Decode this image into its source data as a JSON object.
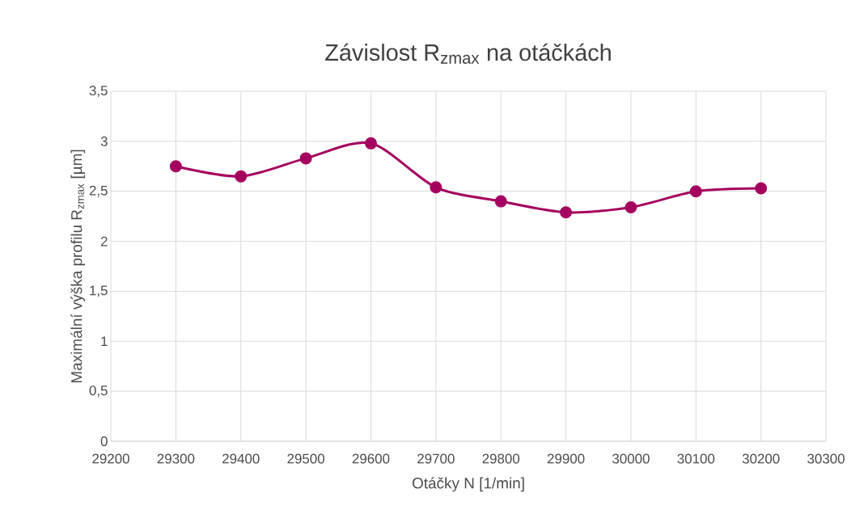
{
  "chart_data": {
    "type": "line",
    "title": "Závislost R$_{zmax}$ na otáčkách",
    "xlabel": "Otáčky N [1/min]",
    "ylabel": "Maximální výška profilu R$_{zmax}$ [µm]",
    "x": [
      29300,
      29400,
      29500,
      29600,
      29700,
      29800,
      29900,
      30000,
      30100,
      30200
    ],
    "series": [
      {
        "color": "#a5005f",
        "values": [
          2.75,
          2.65,
          2.83,
          2.98,
          2.54,
          2.4,
          2.29,
          2.34,
          2.5,
          2.53
        ]
      }
    ],
    "xlim": [
      29200,
      30300
    ],
    "xticks": [
      29200,
      29300,
      29400,
      29500,
      29600,
      29700,
      29800,
      29900,
      30000,
      30100,
      30200,
      30300
    ],
    "ylim": [
      0,
      3.5
    ],
    "yticks": [
      0,
      {
        "value": 0.5,
        "label": "0,5"
      },
      1,
      {
        "value": 1.5,
        "label": "1,5"
      },
      2,
      {
        "value": 2.5,
        "label": "2,5"
      },
      3,
      {
        "value": 3.5,
        "label": "3,5"
      }
    ],
    "grid": true,
    "marker": "circle",
    "line_style": "solid"
  }
}
